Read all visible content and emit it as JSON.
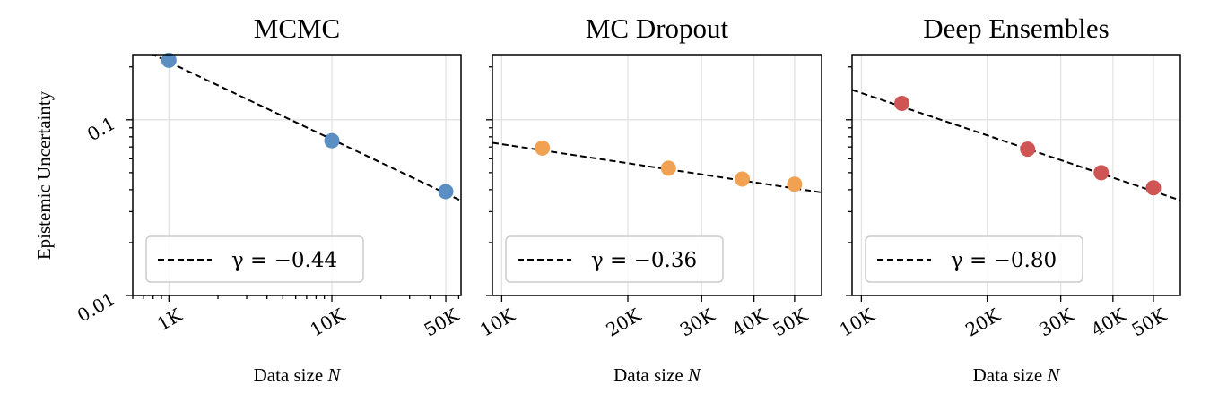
{
  "figure": {
    "ylabel": "Epistemic Uncertainty",
    "y_tick_labels": [
      "0.01",
      "0.1"
    ]
  },
  "chart_data": [
    {
      "type": "scatter",
      "title": "MCMC",
      "xlabel_text": "Data size ",
      "xlabel_var": "N",
      "xscale": "log",
      "yscale": "log",
      "xlim": [
        600,
        62000
      ],
      "ylim": [
        0.01,
        0.235
      ],
      "grid": true,
      "x_ticks": [
        1000,
        10000,
        50000
      ],
      "x_tick_labels": [
        "1K",
        "10K",
        "50K"
      ],
      "color": "#5b8fc4",
      "points": [
        {
          "x": 1000,
          "y": 0.218
        },
        {
          "x": 10000,
          "y": 0.076
        },
        {
          "x": 50000,
          "y": 0.039
        }
      ],
      "fit": {
        "gamma": -0.44,
        "intercept": 4.45
      },
      "legend": {
        "gamma_text": "γ = −0.44",
        "placement": "lower-left"
      }
    },
    {
      "type": "scatter",
      "title": "MC Dropout",
      "xlabel_text": "Data size ",
      "xlabel_var": "N",
      "xscale": "log",
      "yscale": "log",
      "xlim": [
        9500,
        58000
      ],
      "ylim": [
        0.01,
        0.235
      ],
      "grid": true,
      "x_ticks": [
        10000,
        20000,
        30000,
        40000,
        50000
      ],
      "x_tick_labels": [
        "10K",
        "20K",
        "30K",
        "40K",
        "50K"
      ],
      "color": "#f0a252",
      "points": [
        {
          "x": 12500,
          "y": 0.069
        },
        {
          "x": 25000,
          "y": 0.053
        },
        {
          "x": 37500,
          "y": 0.046
        },
        {
          "x": 50000,
          "y": 0.043
        }
      ],
      "fit": {
        "gamma": -0.36,
        "intercept": 2.0
      },
      "legend": {
        "gamma_text": "γ = −0.36",
        "placement": "lower-left"
      }
    },
    {
      "type": "scatter",
      "title": "Deep Ensembles",
      "xlabel_text": "Data size ",
      "xlabel_var": "N",
      "xscale": "log",
      "yscale": "log",
      "xlim": [
        9500,
        58000
      ],
      "ylim": [
        0.01,
        0.235
      ],
      "grid": true,
      "x_ticks": [
        10000,
        20000,
        30000,
        40000,
        50000
      ],
      "x_tick_labels": [
        "10K",
        "20K",
        "30K",
        "40K",
        "50K"
      ],
      "color": "#cf5555",
      "points": [
        {
          "x": 12500,
          "y": 0.124
        },
        {
          "x": 25000,
          "y": 0.068
        },
        {
          "x": 37500,
          "y": 0.05
        },
        {
          "x": 50000,
          "y": 0.041
        }
      ],
      "fit": {
        "gamma": -0.8,
        "intercept": 225.0
      },
      "legend": {
        "gamma_text": "γ = −0.80",
        "placement": "lower-left"
      }
    }
  ]
}
